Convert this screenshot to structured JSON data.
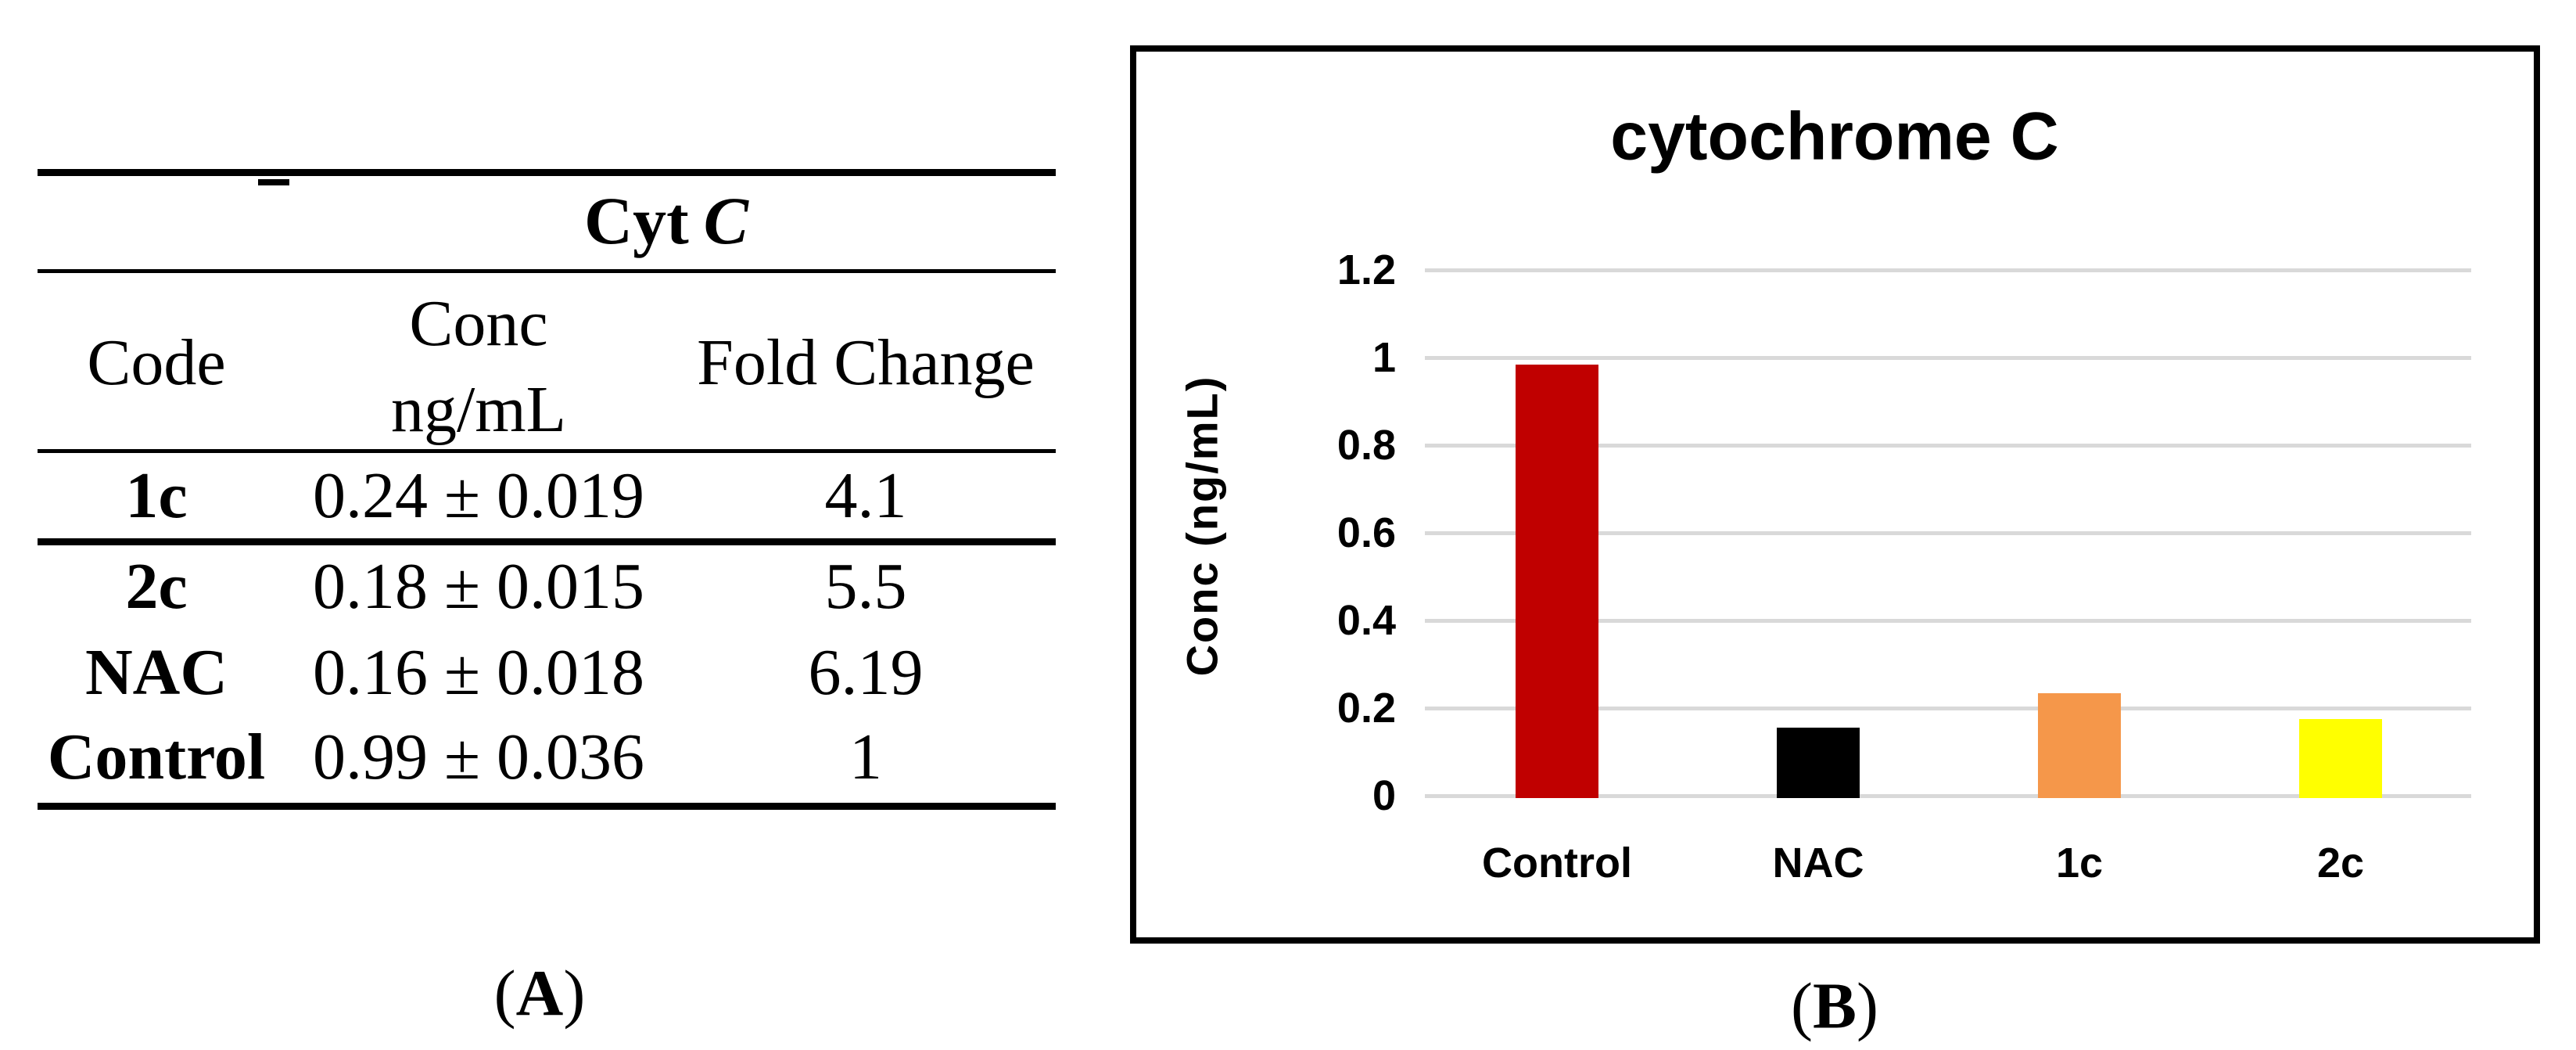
{
  "panel_a": {
    "table": {
      "title": {
        "prefix": "Cyt",
        "italic": "C"
      },
      "headers": {
        "code": "Code",
        "conc_line1": "Conc",
        "conc_line2": "ng/mL",
        "fold": "Fold Change"
      },
      "rows": [
        {
          "code": "1c",
          "conc": "0.24 ± 0.019",
          "fold": "4.1"
        },
        {
          "code": "2c",
          "conc": "0.18 ± 0.015",
          "fold": "5.5"
        },
        {
          "code": "NAC",
          "conc": "0.16 ± 0.018",
          "fold": "6.19"
        },
        {
          "code": "Control",
          "conc": "0.99 ± 0.036",
          "fold": "1"
        }
      ]
    },
    "caption": {
      "open": "(",
      "letter": "A",
      "close": ")"
    }
  },
  "panel_b": {
    "caption": {
      "open": "(",
      "letter": "B",
      "close": ")"
    }
  },
  "chart_data": {
    "type": "bar",
    "title": "cytochrome C",
    "ylabel": "Conc (ng/mL)",
    "xlabel": "",
    "categories": [
      "Control",
      "NAC",
      "1c",
      "2c"
    ],
    "values": [
      0.99,
      0.16,
      0.24,
      0.18
    ],
    "bar_colors": [
      "#C00000",
      "#000000",
      "#F5974A",
      "#FFFF00"
    ],
    "ylim": [
      0,
      1.2
    ],
    "yticks": [
      "0",
      "0.2",
      "0.4",
      "0.6",
      "0.8",
      "1",
      "1.2"
    ],
    "grid": true,
    "gridline_color": "#D9D9D9",
    "legend": false,
    "panel_border_color": "#000000"
  }
}
